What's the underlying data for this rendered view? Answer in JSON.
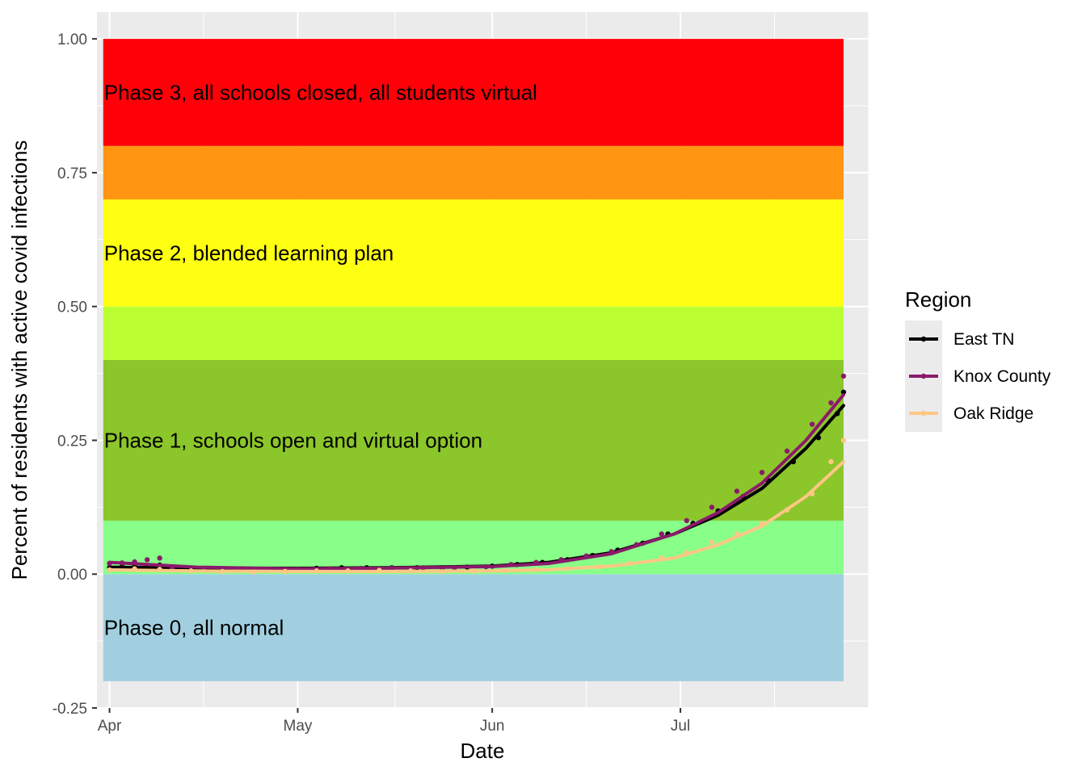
{
  "chart_data": {
    "type": "scatter",
    "xlabel": "Date",
    "ylabel": "Percent of residents with active covid infections",
    "x_ticks": [
      {
        "date": "2020-04-01",
        "label": "Apr"
      },
      {
        "date": "2020-05-01",
        "label": "May"
      },
      {
        "date": "2020-06-01",
        "label": "Jun"
      },
      {
        "date": "2020-07-01",
        "label": "Jul"
      }
    ],
    "y_ticks": [
      {
        "value": -0.25,
        "label": "-0.25"
      },
      {
        "value": 0,
        "label": "0.00"
      },
      {
        "value": 0.25,
        "label": "0.25"
      },
      {
        "value": 0.5,
        "label": "0.50"
      },
      {
        "value": 0.75,
        "label": "0.75"
      },
      {
        "value": 1,
        "label": "1.00"
      }
    ],
    "xlim": [
      "2020-03-30",
      "2020-07-31"
    ],
    "ylim": [
      -0.25,
      1.05
    ],
    "grid": true,
    "bands": [
      {
        "ymin": -0.2,
        "ymax": 0,
        "color": "#a1cfe0",
        "label": "Phase 0, all normal"
      },
      {
        "ymin": 0,
        "ymax": 0.1,
        "color": "#88ff88",
        "label": ""
      },
      {
        "ymin": 0.1,
        "ymax": 0.4,
        "color": "#8bc62b",
        "label": "Phase 1, schools open and virtual option"
      },
      {
        "ymin": 0.4,
        "ymax": 0.5,
        "color": "#bbff33",
        "label": ""
      },
      {
        "ymin": 0.5,
        "ymax": 0.7,
        "color": "#ffff11",
        "label": "Phase 2, blended learning plan"
      },
      {
        "ymin": 0.7,
        "ymax": 0.8,
        "color": "#ff9511",
        "label": ""
      },
      {
        "ymin": 0.8,
        "ymax": 1.0,
        "color": "#ff0008",
        "label": "Phase 3, all schools closed, all students virtual"
      }
    ],
    "band_xrange": [
      "2020-03-31",
      "2020-07-27"
    ],
    "legend": {
      "title": "Region",
      "position": "right"
    },
    "series": [
      {
        "name": "East TN",
        "color": "#000000",
        "points": [
          [
            "2020-04-01",
            0.012
          ],
          [
            "2020-04-03",
            0.014
          ],
          [
            "2020-04-05",
            0.015
          ],
          [
            "2020-04-07",
            0.016
          ],
          [
            "2020-04-09",
            0.017
          ],
          [
            "2020-04-11",
            0.01
          ],
          [
            "2020-04-14",
            0.009
          ],
          [
            "2020-04-18",
            0.008
          ],
          [
            "2020-04-22",
            0.008
          ],
          [
            "2020-04-26",
            0.007
          ],
          [
            "2020-04-30",
            0.009
          ],
          [
            "2020-05-04",
            0.011
          ],
          [
            "2020-05-08",
            0.012
          ],
          [
            "2020-05-12",
            0.012
          ],
          [
            "2020-05-16",
            0.012
          ],
          [
            "2020-05-20",
            0.012
          ],
          [
            "2020-05-24",
            0.012
          ],
          [
            "2020-05-28",
            0.013
          ],
          [
            "2020-06-01",
            0.015
          ],
          [
            "2020-06-05",
            0.018
          ],
          [
            "2020-06-09",
            0.022
          ],
          [
            "2020-06-13",
            0.027
          ],
          [
            "2020-06-17",
            0.035
          ],
          [
            "2020-06-21",
            0.045
          ],
          [
            "2020-06-25",
            0.058
          ],
          [
            "2020-06-29",
            0.075
          ],
          [
            "2020-07-03",
            0.095
          ],
          [
            "2020-07-07",
            0.118
          ],
          [
            "2020-07-11",
            0.145
          ],
          [
            "2020-07-15",
            0.175
          ],
          [
            "2020-07-19",
            0.21
          ],
          [
            "2020-07-23",
            0.255
          ],
          [
            "2020-07-26",
            0.3
          ],
          [
            "2020-07-27",
            0.34
          ]
        ],
        "fit": [
          [
            "2020-04-01",
            0.013
          ],
          [
            "2020-04-15",
            0.011
          ],
          [
            "2020-05-01",
            0.011
          ],
          [
            "2020-05-15",
            0.012
          ],
          [
            "2020-06-01",
            0.015
          ],
          [
            "2020-06-10",
            0.022
          ],
          [
            "2020-06-20",
            0.04
          ],
          [
            "2020-06-30",
            0.075
          ],
          [
            "2020-07-07",
            0.11
          ],
          [
            "2020-07-14",
            0.16
          ],
          [
            "2020-07-21",
            0.235
          ],
          [
            "2020-07-27",
            0.315
          ]
        ]
      },
      {
        "name": "Knox County",
        "color": "#8b1a6b",
        "points": [
          [
            "2020-04-01",
            0.02
          ],
          [
            "2020-04-03",
            0.021
          ],
          [
            "2020-04-05",
            0.023
          ],
          [
            "2020-04-07",
            0.027
          ],
          [
            "2020-04-09",
            0.03
          ],
          [
            "2020-04-11",
            0.012
          ],
          [
            "2020-04-16",
            0.01
          ],
          [
            "2020-04-21",
            0.009
          ],
          [
            "2020-04-26",
            0.008
          ],
          [
            "2020-05-01",
            0.009
          ],
          [
            "2020-05-06",
            0.01
          ],
          [
            "2020-05-11",
            0.011
          ],
          [
            "2020-05-16",
            0.011
          ],
          [
            "2020-05-21",
            0.012
          ],
          [
            "2020-05-26",
            0.012
          ],
          [
            "2020-05-31",
            0.014
          ],
          [
            "2020-06-04",
            0.018
          ],
          [
            "2020-06-08",
            0.022
          ],
          [
            "2020-06-12",
            0.027
          ],
          [
            "2020-06-16",
            0.034
          ],
          [
            "2020-06-20",
            0.042
          ],
          [
            "2020-06-24",
            0.055
          ],
          [
            "2020-06-28",
            0.075
          ],
          [
            "2020-07-02",
            0.1
          ],
          [
            "2020-07-06",
            0.125
          ],
          [
            "2020-07-10",
            0.155
          ],
          [
            "2020-07-14",
            0.19
          ],
          [
            "2020-07-18",
            0.23
          ],
          [
            "2020-07-22",
            0.28
          ],
          [
            "2020-07-25",
            0.32
          ],
          [
            "2020-07-27",
            0.37
          ]
        ],
        "fit": [
          [
            "2020-04-01",
            0.022
          ],
          [
            "2020-04-15",
            0.013
          ],
          [
            "2020-05-01",
            0.01
          ],
          [
            "2020-05-15",
            0.011
          ],
          [
            "2020-06-01",
            0.014
          ],
          [
            "2020-06-10",
            0.02
          ],
          [
            "2020-06-20",
            0.038
          ],
          [
            "2020-06-30",
            0.075
          ],
          [
            "2020-07-07",
            0.115
          ],
          [
            "2020-07-14",
            0.17
          ],
          [
            "2020-07-21",
            0.25
          ],
          [
            "2020-07-27",
            0.335
          ]
        ]
      },
      {
        "name": "Oak Ridge",
        "color": "#ffc785",
        "points": [
          [
            "2020-04-01",
            0.008
          ],
          [
            "2020-04-05",
            0.01
          ],
          [
            "2020-04-09",
            0.009
          ],
          [
            "2020-04-14",
            0.006
          ],
          [
            "2020-04-19",
            0.005
          ],
          [
            "2020-04-24",
            0.004
          ],
          [
            "2020-04-29",
            0.005
          ],
          [
            "2020-05-04",
            0.006
          ],
          [
            "2020-05-09",
            0.006
          ],
          [
            "2020-05-14",
            0.007
          ],
          [
            "2020-05-19",
            0.006
          ],
          [
            "2020-05-24",
            0.005
          ],
          [
            "2020-05-29",
            0.006
          ],
          [
            "2020-06-03",
            0.007
          ],
          [
            "2020-06-08",
            0.008
          ],
          [
            "2020-06-13",
            0.01
          ],
          [
            "2020-06-18",
            0.014
          ],
          [
            "2020-06-23",
            0.02
          ],
          [
            "2020-06-28",
            0.03
          ],
          [
            "2020-07-02",
            0.04
          ],
          [
            "2020-07-06",
            0.06
          ],
          [
            "2020-07-10",
            0.075
          ],
          [
            "2020-07-14",
            0.095
          ],
          [
            "2020-07-18",
            0.12
          ],
          [
            "2020-07-22",
            0.15
          ],
          [
            "2020-07-25",
            0.21
          ],
          [
            "2020-07-27",
            0.25
          ]
        ],
        "fit": [
          [
            "2020-04-01",
            0.008
          ],
          [
            "2020-04-15",
            0.006
          ],
          [
            "2020-05-01",
            0.005
          ],
          [
            "2020-05-15",
            0.005
          ],
          [
            "2020-06-01",
            0.006
          ],
          [
            "2020-06-10",
            0.008
          ],
          [
            "2020-06-20",
            0.015
          ],
          [
            "2020-06-30",
            0.03
          ],
          [
            "2020-07-07",
            0.055
          ],
          [
            "2020-07-14",
            0.09
          ],
          [
            "2020-07-21",
            0.145
          ],
          [
            "2020-07-27",
            0.21
          ]
        ]
      }
    ]
  }
}
